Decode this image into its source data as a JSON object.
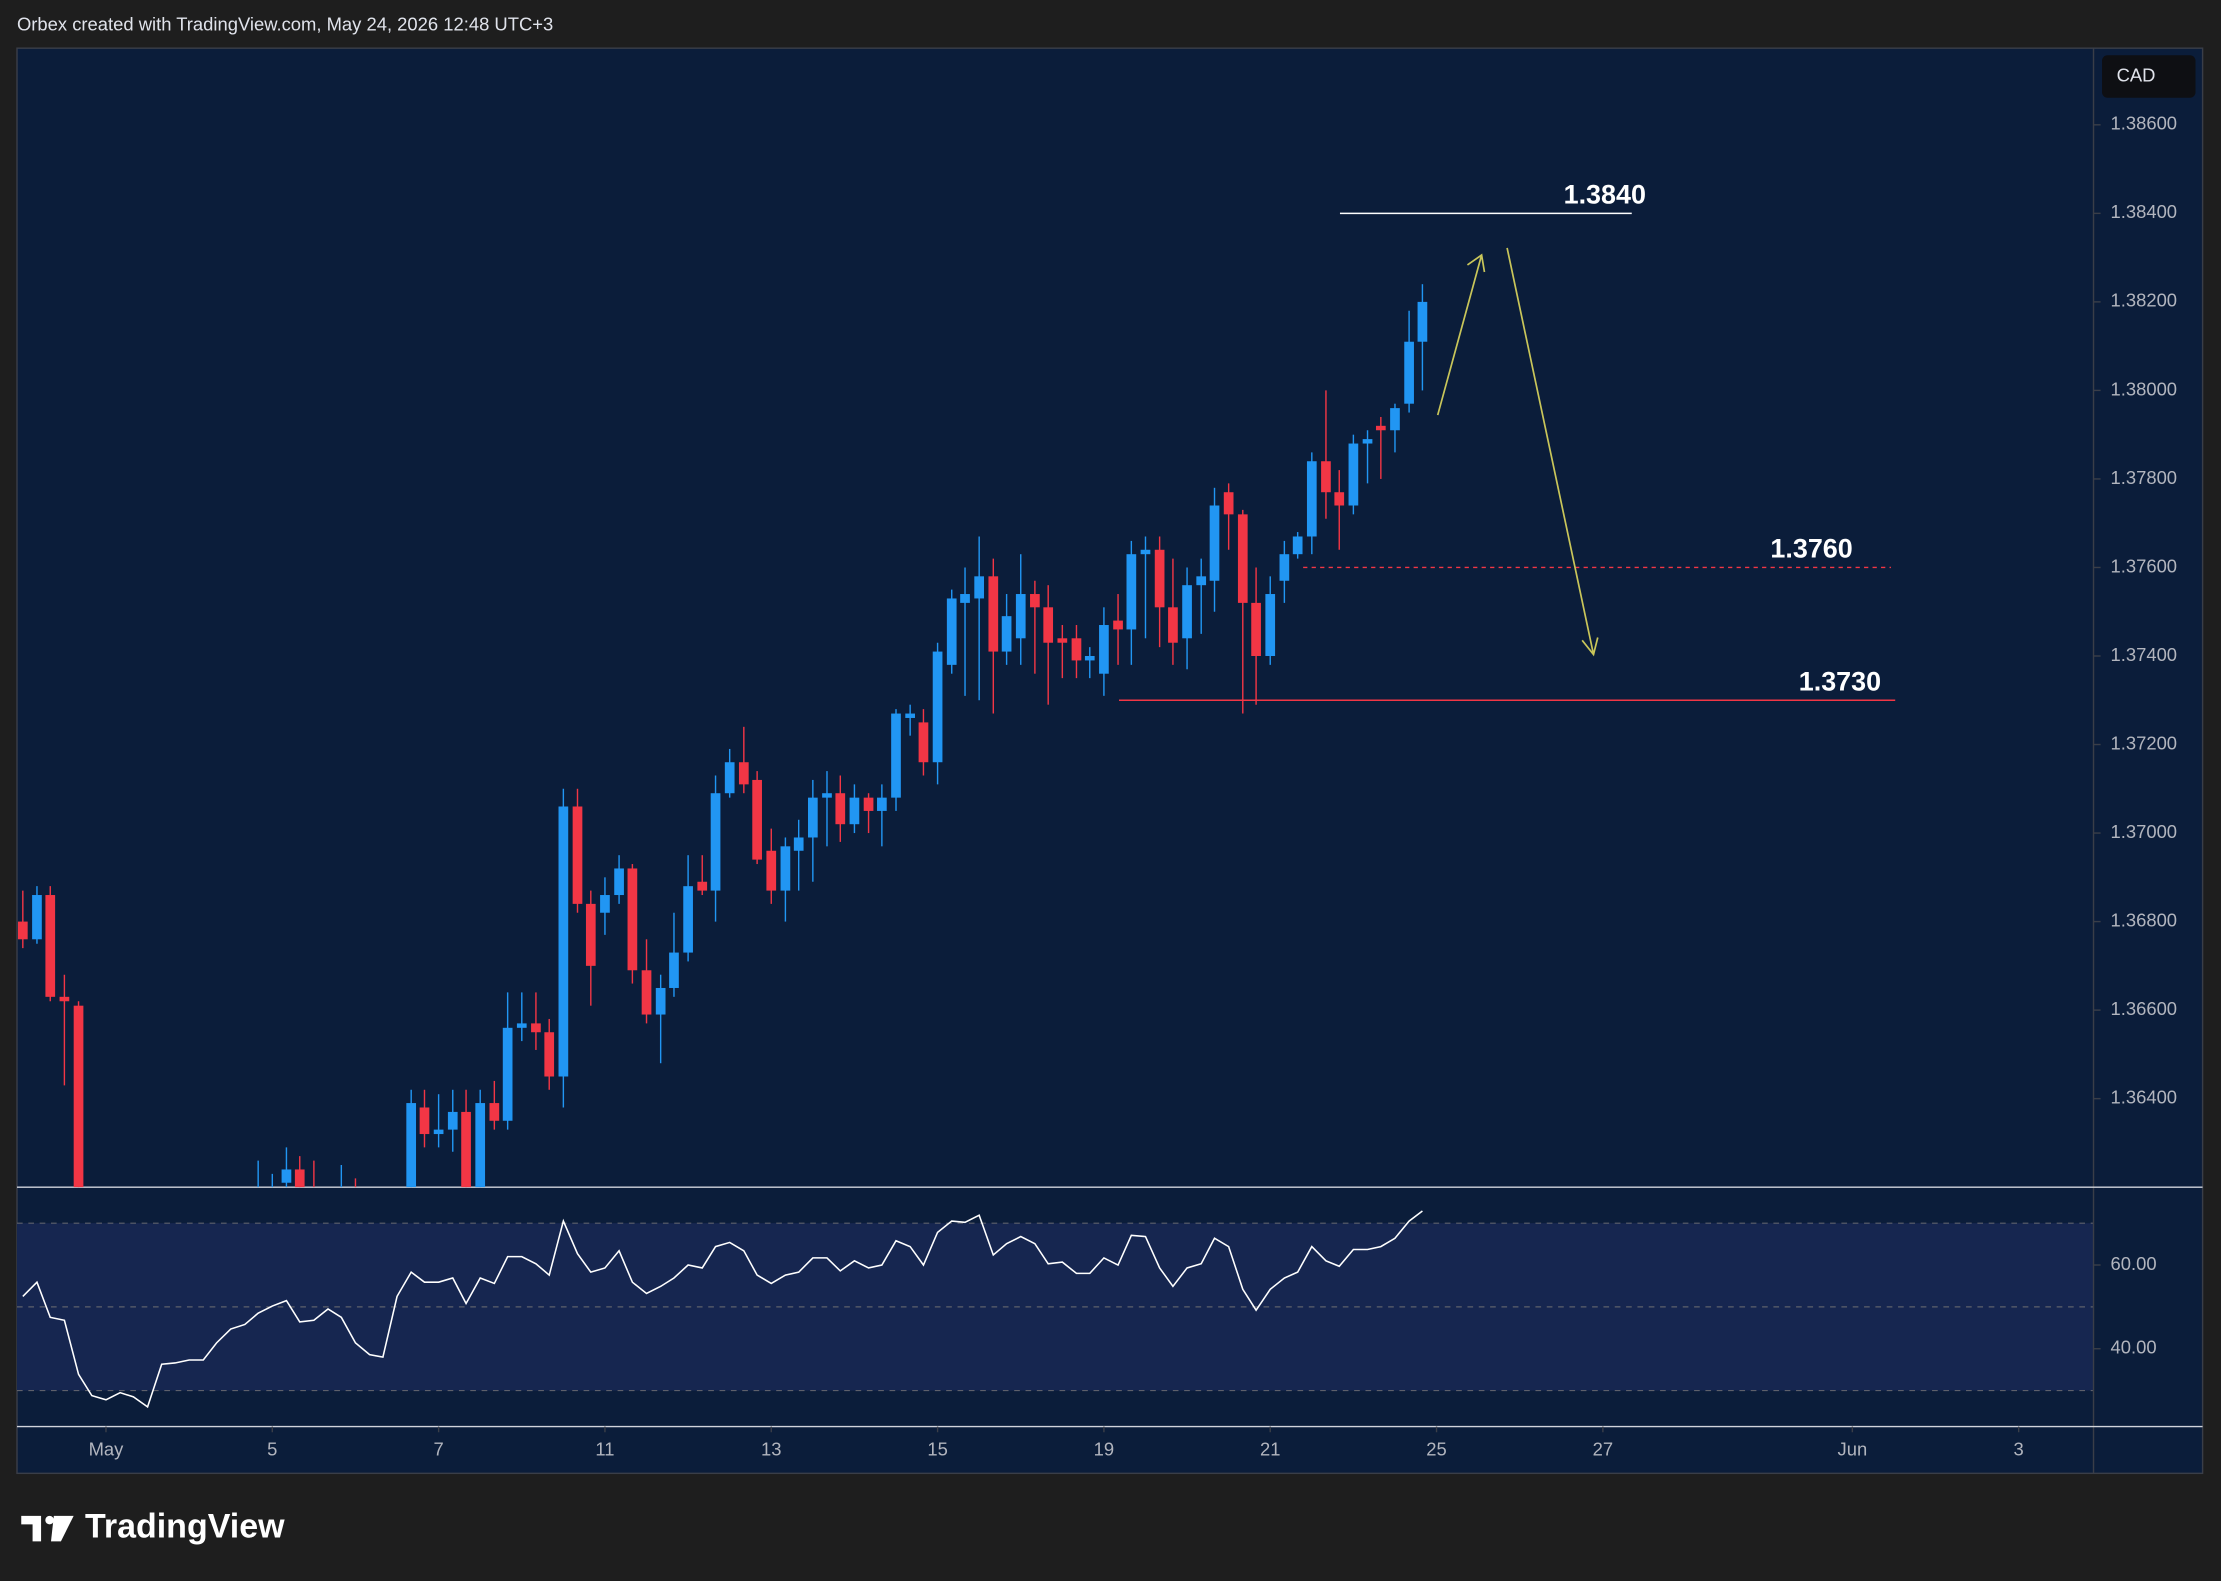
{
  "header": "Orbex created with TradingView.com, May 24, 2026 12:48 UTC+3",
  "logo_text": "TradingView",
  "chart_data": [
    {
      "type": "candlestick",
      "currency": "CAD",
      "up_color": "#2196f3",
      "down_color": "#f23645",
      "xlim": [
        -1.07,
        23.9
      ],
      "ylim": [
        1.362,
        1.3877
      ],
      "yticks": [
        {
          "value": 1.364,
          "label": "1.36400"
        },
        {
          "value": 1.366,
          "label": "1.36600"
        },
        {
          "value": 1.368,
          "label": "1.36800"
        },
        {
          "value": 1.37,
          "label": "1.37000"
        },
        {
          "value": 1.372,
          "label": "1.37200"
        },
        {
          "value": 1.374,
          "label": "1.37400"
        },
        {
          "value": 1.376,
          "label": "1.37600"
        },
        {
          "value": 1.378,
          "label": "1.37800"
        },
        {
          "value": 1.38,
          "label": "1.38000"
        },
        {
          "value": 1.382,
          "label": "1.38200"
        },
        {
          "value": 1.384,
          "label": "1.38400"
        },
        {
          "value": 1.386,
          "label": "1.38600"
        }
      ],
      "x": [
        -1,
        -0.83,
        -0.67,
        -0.5,
        -0.33,
        1.83,
        2,
        2.17,
        2.33,
        2.5,
        2.83,
        3,
        3.67,
        3.83,
        4,
        4.17,
        4.33,
        4.5,
        4.67,
        4.83,
        5,
        5.17,
        5.33,
        5.5,
        5.67,
        5.83,
        6,
        6.17,
        6.33,
        6.5,
        6.67,
        6.83,
        7,
        7.17,
        7.33,
        7.5,
        7.67,
        7.83,
        8,
        8.17,
        8.33,
        8.5,
        8.67,
        8.83,
        9,
        9.17,
        9.33,
        9.5,
        9.67,
        9.83,
        10,
        10.17,
        10.33,
        10.5,
        10.67,
        10.83,
        11,
        11.17,
        11.33,
        11.5,
        11.67,
        11.83,
        12,
        12.17,
        12.33,
        12.5,
        12.67,
        12.83,
        13,
        13.17,
        13.33,
        13.5,
        13.67,
        13.83,
        14,
        14.17,
        14.33,
        14.5,
        14.67,
        14.83,
        15,
        15.17,
        15.33,
        15.5,
        15.67,
        15.83
      ],
      "open": [
        1.368,
        1.3676,
        1.3686,
        1.3663,
        1.3661,
        1.3612,
        1.3615,
        1.3621,
        1.3624,
        1.362,
        1.3612,
        1.3618,
        1.3614,
        1.3638,
        1.3632,
        1.3633,
        1.3637,
        1.3616,
        1.3639,
        1.3635,
        1.3656,
        1.3657,
        1.3655,
        1.3645,
        1.3706,
        1.3684,
        1.3682,
        1.3686,
        1.3692,
        1.3669,
        1.3659,
        1.3665,
        1.3673,
        1.3689,
        1.3687,
        1.3709,
        1.3716,
        1.3712,
        1.3696,
        1.3687,
        1.3696,
        1.3699,
        1.3708,
        1.3709,
        1.3702,
        1.3708,
        1.3705,
        1.3708,
        1.3726,
        1.3725,
        1.3716,
        1.3738,
        1.3752,
        1.3753,
        1.3758,
        1.3741,
        1.3744,
        1.3754,
        1.3751,
        1.3744,
        1.3744,
        1.3739,
        1.3736,
        1.3748,
        1.3746,
        1.3763,
        1.3764,
        1.3751,
        1.3744,
        1.3756,
        1.3757,
        1.3777,
        1.3772,
        1.3752,
        1.374,
        1.3757,
        1.3763,
        1.3767,
        1.3784,
        1.3777,
        1.3774,
        1.3788,
        1.3792,
        1.3791,
        1.3797,
        1.3811
      ],
      "high": [
        1.3687,
        1.3688,
        1.3688,
        1.3668,
        1.3662,
        1.3626,
        1.3623,
        1.3629,
        1.3627,
        1.3626,
        1.3625,
        1.3622,
        1.3642,
        1.3642,
        1.3641,
        1.3642,
        1.3642,
        1.3642,
        1.3644,
        1.3664,
        1.3664,
        1.3664,
        1.3658,
        1.371,
        1.371,
        1.3687,
        1.369,
        1.3695,
        1.3693,
        1.3676,
        1.3668,
        1.3682,
        1.3695,
        1.3695,
        1.3713,
        1.3719,
        1.3724,
        1.3714,
        1.3701,
        1.3699,
        1.3703,
        1.3712,
        1.3714,
        1.3713,
        1.3711,
        1.3709,
        1.3711,
        1.3728,
        1.3729,
        1.3728,
        1.3743,
        1.3755,
        1.376,
        1.3767,
        1.3762,
        1.3754,
        1.3763,
        1.3757,
        1.3756,
        1.3747,
        1.3747,
        1.3742,
        1.3751,
        1.3754,
        1.3766,
        1.3767,
        1.3767,
        1.3762,
        1.376,
        1.3762,
        1.3778,
        1.3779,
        1.3773,
        1.376,
        1.3758,
        1.3766,
        1.3768,
        1.3786,
        1.38,
        1.3782,
        1.379,
        1.3791,
        1.3794,
        1.3797,
        1.3818,
        1.3824
      ],
      "low": [
        1.3674,
        1.3675,
        1.3662,
        1.3643,
        1.361,
        1.3605,
        1.3608,
        1.3612,
        1.361,
        1.3606,
        1.3605,
        1.3606,
        1.361,
        1.3629,
        1.3629,
        1.3628,
        1.361,
        1.3612,
        1.3633,
        1.3633,
        1.3653,
        1.3651,
        1.3642,
        1.3638,
        1.3682,
        1.3661,
        1.3677,
        1.3684,
        1.3666,
        1.3657,
        1.3648,
        1.3663,
        1.3671,
        1.3686,
        1.368,
        1.3708,
        1.3709,
        1.3693,
        1.3684,
        1.368,
        1.3687,
        1.3689,
        1.3697,
        1.3698,
        1.37,
        1.37,
        1.3697,
        1.3705,
        1.3722,
        1.3713,
        1.3711,
        1.3736,
        1.3731,
        1.373,
        1.3727,
        1.3738,
        1.3738,
        1.3736,
        1.3729,
        1.3735,
        1.3735,
        1.3735,
        1.3731,
        1.3738,
        1.3738,
        1.3744,
        1.3742,
        1.3738,
        1.3737,
        1.3745,
        1.375,
        1.3764,
        1.3727,
        1.3729,
        1.3738,
        1.3752,
        1.3762,
        1.3763,
        1.3771,
        1.3764,
        1.3772,
        1.3779,
        1.378,
        1.3786,
        1.3795,
        1.38
      ],
      "close": [
        1.3676,
        1.3686,
        1.3663,
        1.3662,
        1.3615,
        1.3618,
        1.3619,
        1.3624,
        1.3618,
        1.3615,
        1.3618,
        1.3614,
        1.3639,
        1.3632,
        1.3633,
        1.3637,
        1.3616,
        1.3639,
        1.3635,
        1.3656,
        1.3657,
        1.3655,
        1.3645,
        1.3706,
        1.3684,
        1.367,
        1.3686,
        1.3692,
        1.3669,
        1.3659,
        1.3665,
        1.3673,
        1.3688,
        1.3687,
        1.3709,
        1.3716,
        1.3711,
        1.3694,
        1.3687,
        1.3697,
        1.3699,
        1.3708,
        1.3709,
        1.3702,
        1.3708,
        1.3705,
        1.3708,
        1.3727,
        1.3727,
        1.3716,
        1.3741,
        1.3753,
        1.3754,
        1.3758,
        1.3741,
        1.3749,
        1.3754,
        1.3751,
        1.3743,
        1.3743,
        1.3739,
        1.374,
        1.3747,
        1.3746,
        1.3763,
        1.3764,
        1.3751,
        1.3743,
        1.3756,
        1.3758,
        1.3774,
        1.3772,
        1.3752,
        1.374,
        1.3754,
        1.3763,
        1.3767,
        1.3784,
        1.3777,
        1.3774,
        1.3788,
        1.3789,
        1.3791,
        1.3796,
        1.3811,
        1.382
      ],
      "annotations": [
        {
          "value": 1.384,
          "label": "1.3840",
          "color": "#ffffff",
          "style": "solid"
        },
        {
          "value": 1.376,
          "label": "1.3760",
          "color": "#f23645",
          "style": "dashed"
        },
        {
          "value": 1.373,
          "label": "1.3730",
          "color": "#f23645",
          "style": "solid"
        }
      ]
    },
    {
      "type": "line",
      "color": "#ffffff",
      "band_color": "#162650",
      "xlim": [
        -1.07,
        23.9
      ],
      "ylim": [
        21.4,
        78.6
      ],
      "yticks": [
        {
          "value": 60,
          "label": "60.00"
        },
        {
          "value": 40,
          "label": "40.00"
        }
      ],
      "levels": [
        70,
        50,
        30
      ],
      "xticks": [
        {
          "value": 0,
          "label": "May"
        },
        {
          "value": 2,
          "label": "5"
        },
        {
          "value": 4,
          "label": "7"
        },
        {
          "value": 6,
          "label": "11"
        },
        {
          "value": 8,
          "label": "13"
        },
        {
          "value": 10,
          "label": "15"
        },
        {
          "value": 12,
          "label": "19"
        },
        {
          "value": 14,
          "label": "21"
        },
        {
          "value": 16,
          "label": "25"
        },
        {
          "value": 18,
          "label": "27"
        },
        {
          "value": 21,
          "label": "Jun"
        },
        {
          "value": 23,
          "label": "3"
        }
      ],
      "x": [
        -1,
        -0.83,
        -0.67,
        -0.5,
        -0.33,
        -0.17,
        0,
        0.17,
        0.33,
        0.5,
        0.67,
        0.83,
        1,
        1.17,
        1.33,
        1.5,
        1.67,
        1.83,
        2,
        2.17,
        2.33,
        2.5,
        2.67,
        2.83,
        3,
        3.17,
        3.33,
        3.5,
        3.67,
        3.83,
        4,
        4.17,
        4.33,
        4.5,
        4.67,
        4.83,
        5,
        5.17,
        5.33,
        5.5,
        5.67,
        5.83,
        6,
        6.17,
        6.33,
        6.5,
        6.67,
        6.83,
        7,
        7.17,
        7.33,
        7.5,
        7.67,
        7.83,
        8,
        8.17,
        8.33,
        8.5,
        8.67,
        8.83,
        9,
        9.17,
        9.33,
        9.5,
        9.67,
        9.83,
        10,
        10.17,
        10.33,
        10.5,
        10.67,
        10.83,
        11,
        11.17,
        11.33,
        11.5,
        11.67,
        11.83,
        12,
        12.17,
        12.33,
        12.5,
        12.67,
        12.83,
        13,
        13.17,
        13.33,
        13.5,
        13.67,
        13.83,
        14,
        14.17,
        14.33,
        14.5,
        14.67,
        14.83,
        15,
        15.17,
        15.33,
        15.5,
        15.67,
        15.83
      ],
      "values": [
        52.5,
        55.9,
        47.5,
        46.8,
        33.9,
        28.8,
        27.8,
        29.5,
        28.5,
        26.1,
        36.3,
        36.6,
        37.3,
        37.3,
        41.4,
        44.7,
        45.8,
        48.5,
        50.2,
        51.5,
        46.4,
        46.8,
        49.5,
        47.5,
        41.4,
        38.6,
        38.0,
        52.5,
        58.3,
        55.9,
        55.9,
        56.9,
        50.8,
        56.9,
        55.6,
        62.0,
        62.0,
        60.3,
        57.6,
        70.5,
        62.7,
        58.3,
        59.3,
        63.4,
        55.9,
        53.2,
        54.9,
        56.9,
        60.0,
        59.3,
        64.4,
        65.4,
        63.4,
        57.6,
        55.6,
        57.6,
        58.3,
        61.7,
        61.7,
        58.6,
        61.0,
        59.3,
        60.0,
        65.8,
        64.4,
        60.0,
        67.8,
        70.5,
        70.2,
        71.9,
        62.4,
        65.1,
        66.8,
        65.1,
        60.3,
        60.7,
        58.0,
        58.0,
        61.7,
        60.0,
        67.1,
        66.8,
        59.3,
        54.9,
        59.3,
        60.3,
        66.4,
        64.4,
        54.2,
        49.2,
        54.2,
        56.9,
        58.3,
        64.4,
        61.0,
        59.7,
        63.7,
        63.7,
        64.4,
        66.4,
        70.5,
        72.9
      ]
    }
  ]
}
